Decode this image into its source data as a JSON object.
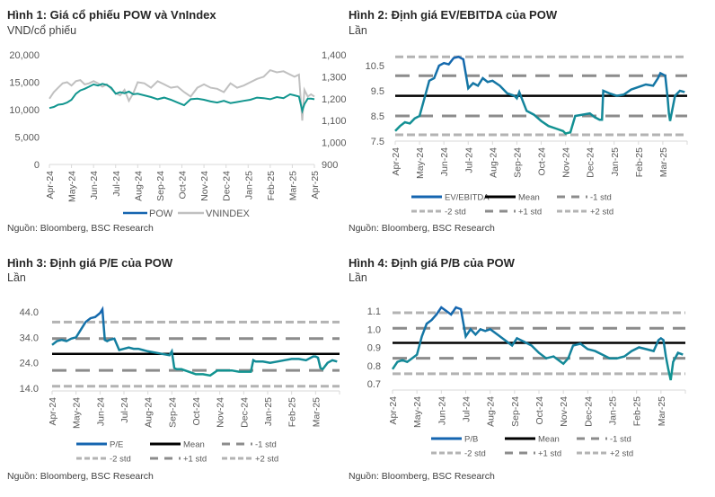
{
  "colors": {
    "pow_start": "#1565b0",
    "pow_end": "#12968f",
    "vnindex": "#c0c0c0",
    "mean": "#000000",
    "std1": "#8c8c8c",
    "std2": "#b3b3b3",
    "axis": "#d9d9d9"
  },
  "source_text": "Nguồn: Bloomberg, BSC Research",
  "chart_data": [
    {
      "id": "fig1",
      "type": "line",
      "title": "Hình 1: Giá cổ phiếu POW và VnIndex",
      "subtitle": "VND/cổ phiếu",
      "x_ticks": [
        "Apr-24",
        "May-24",
        "Jun-24",
        "Jul-24",
        "Aug-24",
        "Sep-24",
        "Oct-24",
        "Nov-24",
        "Dec-24",
        "Jan-25",
        "Feb-25",
        "Mar-25",
        "Apr-25"
      ],
      "y_left": {
        "range": [
          0,
          20000
        ],
        "ticks": [
          "0",
          "5,000",
          "10,000",
          "15,000",
          "20,000"
        ]
      },
      "y_right": {
        "range": [
          900,
          1400
        ],
        "ticks": [
          "900",
          "1,000",
          "1,100",
          "1,200",
          "1,300",
          "1,400"
        ]
      },
      "legend": [
        "POW",
        "VNINDEX"
      ],
      "legend_position": "bottom",
      "series": [
        {
          "name": "POW",
          "axis": "left",
          "x": [
            0,
            0.2,
            0.4,
            0.6,
            0.8,
            1.0,
            1.2,
            1.4,
            1.6,
            1.8,
            2.0,
            2.2,
            2.4,
            2.6,
            2.8,
            3.0,
            3.2,
            3.4,
            3.6,
            3.8,
            4.0,
            4.3,
            4.6,
            4.9,
            5.2,
            5.5,
            5.8,
            6.1,
            6.4,
            6.7,
            7.0,
            7.3,
            7.6,
            7.9,
            8.2,
            8.5,
            8.8,
            9.1,
            9.4,
            9.7,
            10.0,
            10.3,
            10.6,
            10.9,
            11.1,
            11.3,
            11.45,
            11.55,
            11.7,
            11.85,
            12.0
          ],
          "values": [
            10300,
            10500,
            10900,
            11000,
            11300,
            11800,
            12900,
            13500,
            13800,
            14200,
            14600,
            14400,
            14700,
            14500,
            14000,
            12900,
            13200,
            13000,
            13300,
            12800,
            12900,
            12600,
            12300,
            11900,
            12200,
            11800,
            11300,
            10800,
            11900,
            12000,
            11800,
            11500,
            11300,
            11600,
            11200,
            11400,
            11600,
            11800,
            12200,
            12100,
            11900,
            12300,
            12100,
            12800,
            12600,
            12400,
            9800,
            11000,
            12000,
            12000,
            11900
          ]
        },
        {
          "name": "VNINDEX",
          "axis": "right",
          "x": [
            0,
            0.2,
            0.4,
            0.6,
            0.8,
            1.0,
            1.2,
            1.4,
            1.6,
            1.8,
            2.0,
            2.2,
            2.4,
            2.6,
            2.8,
            3.0,
            3.2,
            3.4,
            3.6,
            3.8,
            4.0,
            4.3,
            4.6,
            4.9,
            5.2,
            5.5,
            5.8,
            6.1,
            6.4,
            6.7,
            7.0,
            7.3,
            7.6,
            7.9,
            8.2,
            8.5,
            8.8,
            9.1,
            9.4,
            9.7,
            10.0,
            10.3,
            10.6,
            10.9,
            11.1,
            11.3,
            11.45,
            11.55,
            11.7,
            11.85,
            12.0
          ],
          "values": [
            1200,
            1230,
            1250,
            1270,
            1275,
            1260,
            1280,
            1285,
            1265,
            1270,
            1280,
            1270,
            1255,
            1265,
            1245,
            1225,
            1215,
            1240,
            1190,
            1225,
            1275,
            1270,
            1250,
            1280,
            1265,
            1250,
            1255,
            1230,
            1210,
            1250,
            1265,
            1250,
            1245,
            1230,
            1270,
            1250,
            1260,
            1275,
            1290,
            1300,
            1330,
            1320,
            1325,
            1310,
            1300,
            1310,
            1100,
            1240,
            1210,
            1220,
            1210
          ]
        }
      ]
    },
    {
      "id": "fig2",
      "type": "line",
      "title": "Hình 2: Định giá EV/EBITDA của POW",
      "subtitle": "Lần",
      "x_ticks": [
        "Apr-24",
        "May-24",
        "Jun-24",
        "Jul-24",
        "Aug-24",
        "Sep-24",
        "Oct-24",
        "Nov-24",
        "Dec-24",
        "Jan-25",
        "Feb-25",
        "Mar-25"
      ],
      "y": {
        "range": [
          7.5,
          11.0
        ],
        "ticks": [
          "7.5",
          "8.5",
          "9.5",
          "10.5"
        ]
      },
      "bands": {
        "mean": 9.3,
        "plus1": 10.1,
        "minus1": 8.5,
        "plus2": 10.85,
        "minus2": 7.75
      },
      "legend": [
        "EV/EBITDA",
        "Mean",
        "-1 std",
        "-2 std",
        "+1 std",
        "+2 std"
      ],
      "legend_position": "bottom",
      "series": [
        {
          "name": "EV/EBITDA",
          "x": [
            0,
            0.2,
            0.4,
            0.6,
            0.8,
            1.0,
            1.2,
            1.4,
            1.6,
            1.8,
            2.0,
            2.2,
            2.4,
            2.6,
            2.8,
            3.0,
            3.2,
            3.4,
            3.6,
            3.8,
            4.0,
            4.3,
            4.6,
            4.9,
            5.0,
            5.1,
            5.4,
            5.7,
            6.0,
            6.3,
            6.6,
            6.9,
            7.0,
            7.2,
            7.4,
            7.7,
            8.0,
            8.2,
            8.4,
            8.5,
            8.55,
            8.8,
            9.1,
            9.4,
            9.7,
            10.0,
            10.3,
            10.6,
            10.8,
            10.9,
            11.1,
            11.2,
            11.25,
            11.3,
            11.5,
            11.7,
            11.9
          ],
          "values": [
            7.9,
            8.1,
            8.25,
            8.2,
            8.4,
            8.5,
            9.2,
            9.9,
            10.0,
            10.5,
            10.6,
            10.55,
            10.8,
            10.85,
            10.75,
            9.6,
            9.8,
            9.7,
            10.0,
            9.85,
            9.9,
            9.7,
            9.4,
            9.3,
            9.2,
            9.45,
            8.7,
            8.55,
            8.3,
            8.1,
            8.0,
            7.9,
            7.8,
            7.85,
            8.5,
            8.55,
            8.6,
            8.45,
            8.35,
            8.35,
            9.5,
            9.4,
            9.3,
            9.35,
            9.55,
            9.65,
            9.75,
            9.7,
            10.0,
            10.2,
            10.1,
            9.2,
            8.6,
            8.3,
            9.3,
            9.5,
            9.45
          ]
        }
      ]
    },
    {
      "id": "fig3",
      "type": "line",
      "title": "Hình 3: Định giá P/E của POW",
      "subtitle": "Lần",
      "x_ticks": [
        "Apr-24",
        "May-24",
        "Jun-24",
        "Jul-24",
        "Aug-24",
        "Sep-24",
        "Oct-24",
        "Nov-24",
        "Dec-24",
        "Jan-25",
        "Feb-25",
        "Mar-25"
      ],
      "y": {
        "range": [
          14.0,
          44.0
        ],
        "ticks": [
          "14.0",
          "24.0",
          "34.0",
          "44.0"
        ]
      },
      "bands": {
        "mean": 27.5,
        "plus1": 33.5,
        "minus1": 21.0,
        "plus2": 40.0,
        "minus2": 14.8
      },
      "legend": [
        "P/E",
        "Mean",
        "-1 std",
        "-2 std",
        "+1 std",
        "+2 std"
      ],
      "legend_position": "bottom",
      "series": [
        {
          "name": "P/E",
          "x": [
            0,
            0.2,
            0.4,
            0.6,
            0.8,
            1.0,
            1.2,
            1.4,
            1.6,
            1.8,
            2.0,
            2.1,
            2.2,
            2.3,
            2.4,
            2.6,
            2.8,
            3.0,
            3.2,
            3.4,
            3.6,
            3.8,
            4.0,
            4.3,
            4.6,
            4.9,
            5.0,
            5.1,
            5.2,
            5.4,
            5.7,
            6.0,
            6.3,
            6.6,
            6.9,
            7.2,
            7.5,
            7.8,
            8.1,
            8.3,
            8.4,
            8.5,
            8.8,
            9.1,
            9.4,
            9.7,
            10.0,
            10.3,
            10.6,
            10.9,
            11.0,
            11.1,
            11.2,
            11.3,
            11.5,
            11.7,
            11.9
          ],
          "values": [
            31,
            32.5,
            33,
            32.5,
            33.5,
            34,
            37,
            40,
            41.5,
            42,
            43.5,
            45,
            33,
            32.5,
            33,
            33.5,
            29,
            29.5,
            30,
            29.5,
            29.5,
            29,
            28.5,
            28,
            27.5,
            27,
            28.5,
            22,
            21.5,
            21.5,
            20.5,
            19.5,
            19.5,
            19,
            21,
            21,
            21,
            20.5,
            20.5,
            20.5,
            25,
            24.5,
            24.5,
            24,
            24.5,
            25,
            25.5,
            25.5,
            25,
            26.5,
            26.5,
            26,
            22,
            21.5,
            24,
            25,
            24.5
          ]
        }
      ]
    },
    {
      "id": "fig4",
      "type": "line",
      "title": "Hình 4: Định giá P/B của POW",
      "subtitle": "Lần",
      "x_ticks": [
        "Apr-24",
        "May-24",
        "Jun-24",
        "Jul-24",
        "Aug-24",
        "Sep-24",
        "Oct-24",
        "Nov-24",
        "Dec-24",
        "Jan-25",
        "Feb-25",
        "Mar-25"
      ],
      "y": {
        "range": [
          0.7,
          1.1
        ],
        "ticks": [
          "0.7",
          "0.8",
          "0.9",
          "1.0",
          "1.1"
        ]
      },
      "bands": {
        "mean": 0.925,
        "plus1": 1.005,
        "minus1": 0.84,
        "plus2": 1.09,
        "minus2": 0.755
      },
      "legend": [
        "P/B",
        "Mean",
        "-1 std",
        "-2 std",
        "+1 std",
        "+2 std"
      ],
      "legend_position": "bottom",
      "series": [
        {
          "name": "P/B",
          "x": [
            0,
            0.2,
            0.4,
            0.6,
            0.8,
            1.0,
            1.2,
            1.4,
            1.6,
            1.8,
            2.0,
            2.2,
            2.4,
            2.6,
            2.8,
            3.0,
            3.2,
            3.4,
            3.6,
            3.8,
            4.0,
            4.3,
            4.6,
            4.9,
            5.1,
            5.4,
            5.7,
            6.0,
            6.3,
            6.6,
            6.9,
            7.0,
            7.2,
            7.4,
            7.7,
            8.0,
            8.3,
            8.6,
            8.9,
            9.2,
            9.5,
            9.8,
            10.1,
            10.4,
            10.7,
            10.9,
            11.0,
            11.1,
            11.2,
            11.3,
            11.4,
            11.5,
            11.7,
            11.9
          ],
          "values": [
            0.78,
            0.82,
            0.83,
            0.82,
            0.84,
            0.86,
            0.96,
            1.03,
            1.05,
            1.08,
            1.12,
            1.1,
            1.08,
            1.12,
            1.11,
            0.96,
            1.0,
            0.97,
            1.0,
            0.99,
            1.0,
            0.97,
            0.94,
            0.91,
            0.95,
            0.93,
            0.91,
            0.87,
            0.84,
            0.85,
            0.82,
            0.81,
            0.84,
            0.91,
            0.92,
            0.89,
            0.88,
            0.86,
            0.84,
            0.84,
            0.85,
            0.88,
            0.9,
            0.89,
            0.88,
            0.94,
            0.95,
            0.94,
            0.85,
            0.78,
            0.72,
            0.82,
            0.87,
            0.86
          ]
        }
      ]
    }
  ],
  "fig1_legend_labels": {
    "pow": "POW",
    "vnindex": "VNINDEX"
  }
}
